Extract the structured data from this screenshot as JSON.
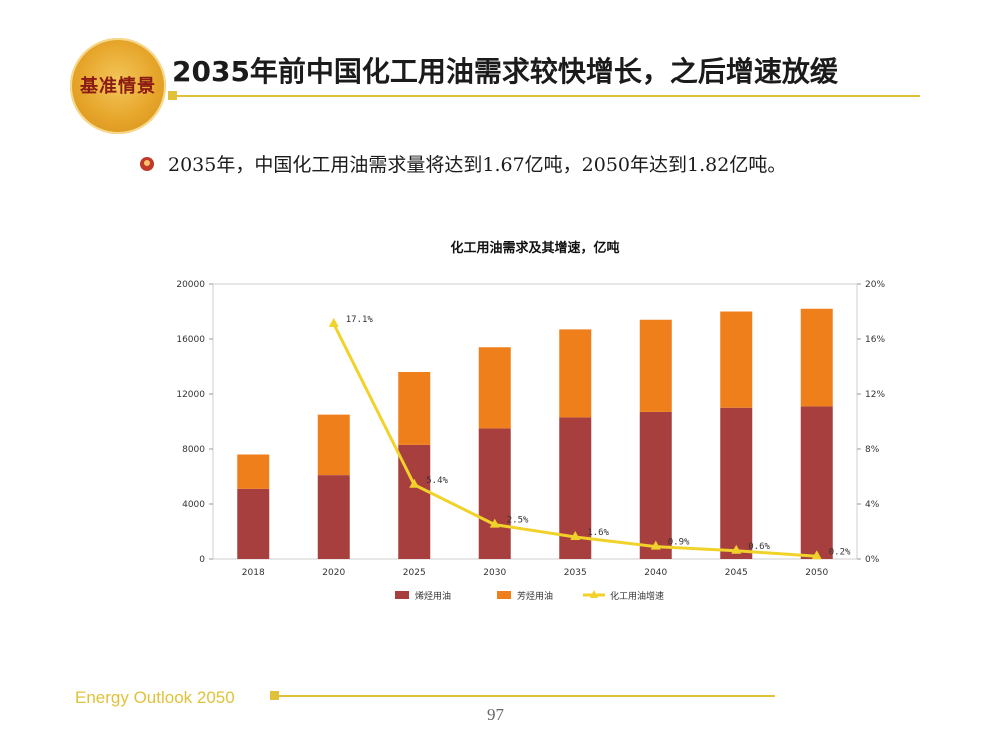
{
  "header": {
    "logo_text": "基准情景",
    "title": "2035年前中国化工用油需求较快增长，之后增速放缓"
  },
  "bullet": {
    "text": "2035年，中国化工用油需求量将达到1.67亿吨，2050年达到1.82亿吨。"
  },
  "footer": {
    "brand": "Energy Outlook 2050",
    "page_number": "97"
  },
  "colors": {
    "olefin": "#a83f3f",
    "aromatic": "#ef7f1a",
    "growth": "#f0d22a",
    "accent": "#e0c23a"
  },
  "chart_data": {
    "type": "bar",
    "title": "化工用油需求及其增速，亿吨",
    "categories": [
      "2018",
      "2020",
      "2025",
      "2030",
      "2035",
      "2040",
      "2045",
      "2050"
    ],
    "series": [
      {
        "name": "烯烃用油",
        "type": "bar",
        "stacked": true,
        "values": [
          5100,
          6100,
          8300,
          9500,
          10300,
          10700,
          11000,
          11100
        ]
      },
      {
        "name": "芳烃用油",
        "type": "bar",
        "stacked": true,
        "values": [
          2500,
          4400,
          5300,
          5900,
          6400,
          6700,
          7000,
          7100
        ]
      },
      {
        "name": "化工用油增速",
        "type": "line",
        "axis": "right",
        "values": [
          null,
          17.1,
          5.4,
          2.5,
          1.6,
          0.9,
          0.6,
          0.2
        ],
        "labels": [
          "",
          "17.1%",
          "5.4%",
          "2.5%",
          "1.6%",
          "0.9%",
          "0.6%",
          "0.2%"
        ]
      }
    ],
    "y_left": {
      "ticks": [
        "0",
        "4000",
        "8000",
        "12000",
        "16000",
        "20000"
      ],
      "lim": [
        0,
        20000
      ]
    },
    "y_right": {
      "ticks": [
        "0%",
        "4%",
        "8%",
        "12%",
        "16%",
        "20%"
      ],
      "lim": [
        0,
        20
      ]
    },
    "legend_position": "bottom",
    "grid": false
  }
}
